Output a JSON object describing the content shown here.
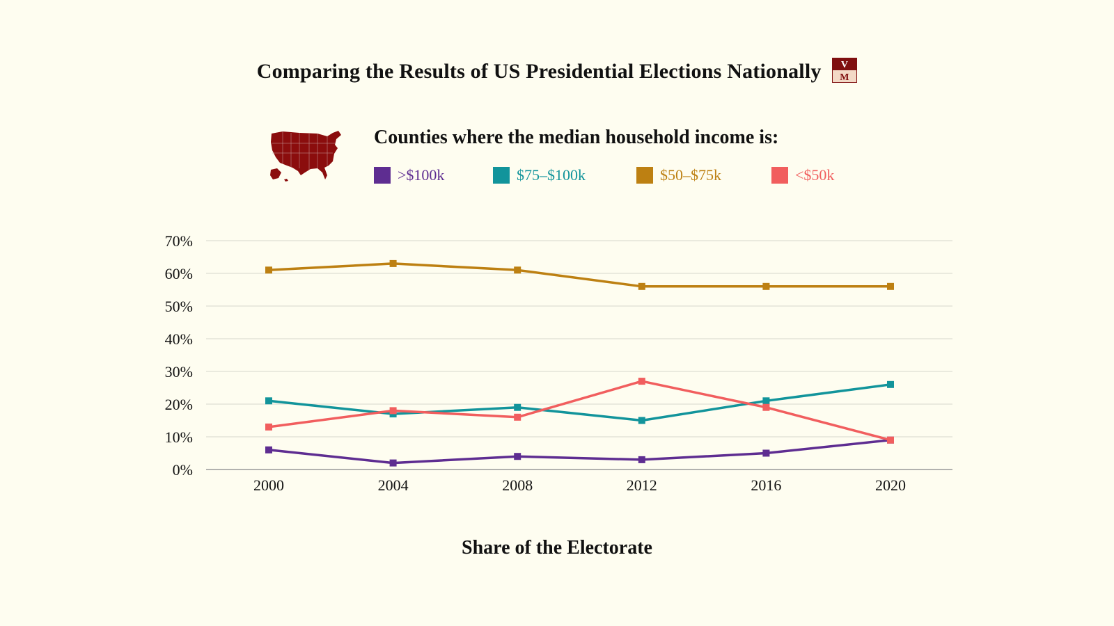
{
  "title": "Comparing the Results of US Presidential Elections Nationally",
  "logo": {
    "top": "V",
    "bottom": "M"
  },
  "legend": {
    "heading": "Counties where the median household income is:",
    "items": [
      {
        "label": ">$100k",
        "color": "#5e2d91"
      },
      {
        "label": "$75–$100k",
        "color": "#12949b"
      },
      {
        "label": "$50–$75k",
        "color": "#bd8012"
      },
      {
        "label": "<$50k",
        "color": "#f15e5e"
      }
    ]
  },
  "chart_data": {
    "type": "line",
    "x": [
      "2000",
      "2004",
      "2008",
      "2012",
      "2016",
      "2020"
    ],
    "yticks": [
      "0%",
      "10%",
      "20%",
      "30%",
      "40%",
      "50%",
      "60%",
      "70%"
    ],
    "ylim": [
      0,
      70
    ],
    "series": [
      {
        "name": ">$100k",
        "color": "#5e2d91",
        "values": [
          6,
          2,
          4,
          3,
          5,
          9
        ]
      },
      {
        "name": "$75–$100k",
        "color": "#12949b",
        "values": [
          21,
          17,
          19,
          15,
          21,
          26
        ]
      },
      {
        "name": "$50–$75k",
        "color": "#bd8012",
        "values": [
          61,
          63,
          61,
          56,
          56,
          56
        ]
      },
      {
        "name": "<$50k",
        "color": "#f15e5e",
        "values": [
          13,
          18,
          16,
          27,
          19,
          9
        ]
      }
    ],
    "grid": true
  },
  "footer": "Share of the Electorate"
}
